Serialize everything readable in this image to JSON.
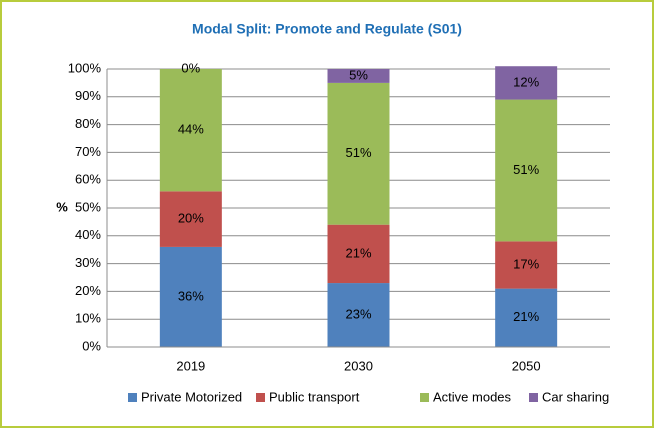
{
  "chart_data": {
    "type": "stacked_bar",
    "title": "Modal Split: Promote and Regulate (S01)",
    "ylabel": "%",
    "categories": [
      "2019",
      "2030",
      "2050"
    ],
    "series": [
      {
        "name": "Private Motorized",
        "color": "#4f81bd",
        "values": [
          36,
          23,
          21
        ],
        "value_labels": [
          "36%",
          "23%",
          "21%"
        ]
      },
      {
        "name": "Public transport",
        "color": "#c0504d",
        "values": [
          20,
          21,
          17
        ],
        "value_labels": [
          "20%",
          "21%",
          "17%"
        ]
      },
      {
        "name": "Active modes",
        "color": "#9bbb59",
        "values": [
          44,
          51,
          51
        ],
        "value_labels": [
          "44%",
          "51%",
          "51%"
        ]
      },
      {
        "name": "Car sharing",
        "color": "#8064a2",
        "values": [
          0,
          5,
          12
        ],
        "value_labels": [
          "0%",
          "5%",
          "12%"
        ]
      }
    ],
    "ylim": [
      0,
      100
    ],
    "yticks": [
      {
        "value": 0,
        "label": "0%"
      },
      {
        "value": 10,
        "label": "10%"
      },
      {
        "value": 20,
        "label": "20%"
      },
      {
        "value": 30,
        "label": "30%"
      },
      {
        "value": 40,
        "label": "40%"
      },
      {
        "value": 50,
        "label": "50%"
      },
      {
        "value": 60,
        "label": "60%"
      },
      {
        "value": 70,
        "label": "70%"
      },
      {
        "value": 80,
        "label": "80%"
      },
      {
        "value": 90,
        "label": "90%"
      },
      {
        "value": 100,
        "label": "100%"
      }
    ],
    "grid": true,
    "legend": "bottom"
  }
}
